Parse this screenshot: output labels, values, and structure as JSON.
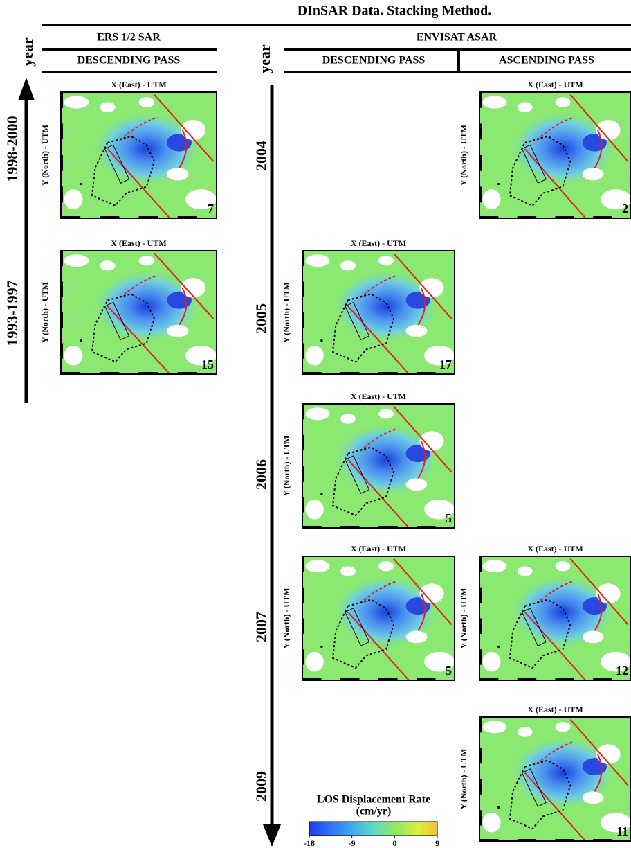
{
  "title": "DInSAR Data. Stacking Method.",
  "ers": {
    "satellite": "ERS 1/2 SAR",
    "pass": "DESCENDING PASS",
    "year_label": "year",
    "periods": [
      "1998-2000",
      "1993-1997"
    ]
  },
  "envisat": {
    "satellite": "ENVISAT ASAR",
    "year_label": "year",
    "passes": [
      "DESCENDING PASS",
      "ASCENDING PASS"
    ],
    "years": [
      "2004",
      "2005",
      "2006",
      "2007",
      "2009"
    ]
  },
  "panels": [
    {
      "x_label": "X (East) - UTM",
      "y_label": "Y (North) - UTM",
      "count": 7
    },
    {
      "x_label": "X (East) - UTM",
      "y_label": "Y (North) - UTM",
      "count": 15
    },
    {
      "x_label": "X (East) - UTM",
      "y_label": "Y (North) - UTM",
      "count": 2
    },
    {
      "x_label": "X (East) - UTM",
      "y_label": "Y (North) - UTM",
      "count": 17
    },
    {
      "x_label": "X (East) - UTM",
      "y_label": "Y (North) - UTM",
      "count": 5
    },
    {
      "x_label": "X (East) - UTM",
      "y_label": "Y (North) - UTM",
      "count": 5
    },
    {
      "x_label": "X (East) - UTM",
      "y_label": "Y (North) - UTM",
      "count": 12
    },
    {
      "x_label": "X (East) - UTM",
      "y_label": "Y (North) - UTM",
      "count": 11
    }
  ],
  "colorbar": {
    "title": "LOS Displacement Rate",
    "unit": "(cm/yr)",
    "lim": [
      -18,
      9
    ],
    "ticks": [
      -18,
      -9,
      0,
      9
    ]
  }
}
